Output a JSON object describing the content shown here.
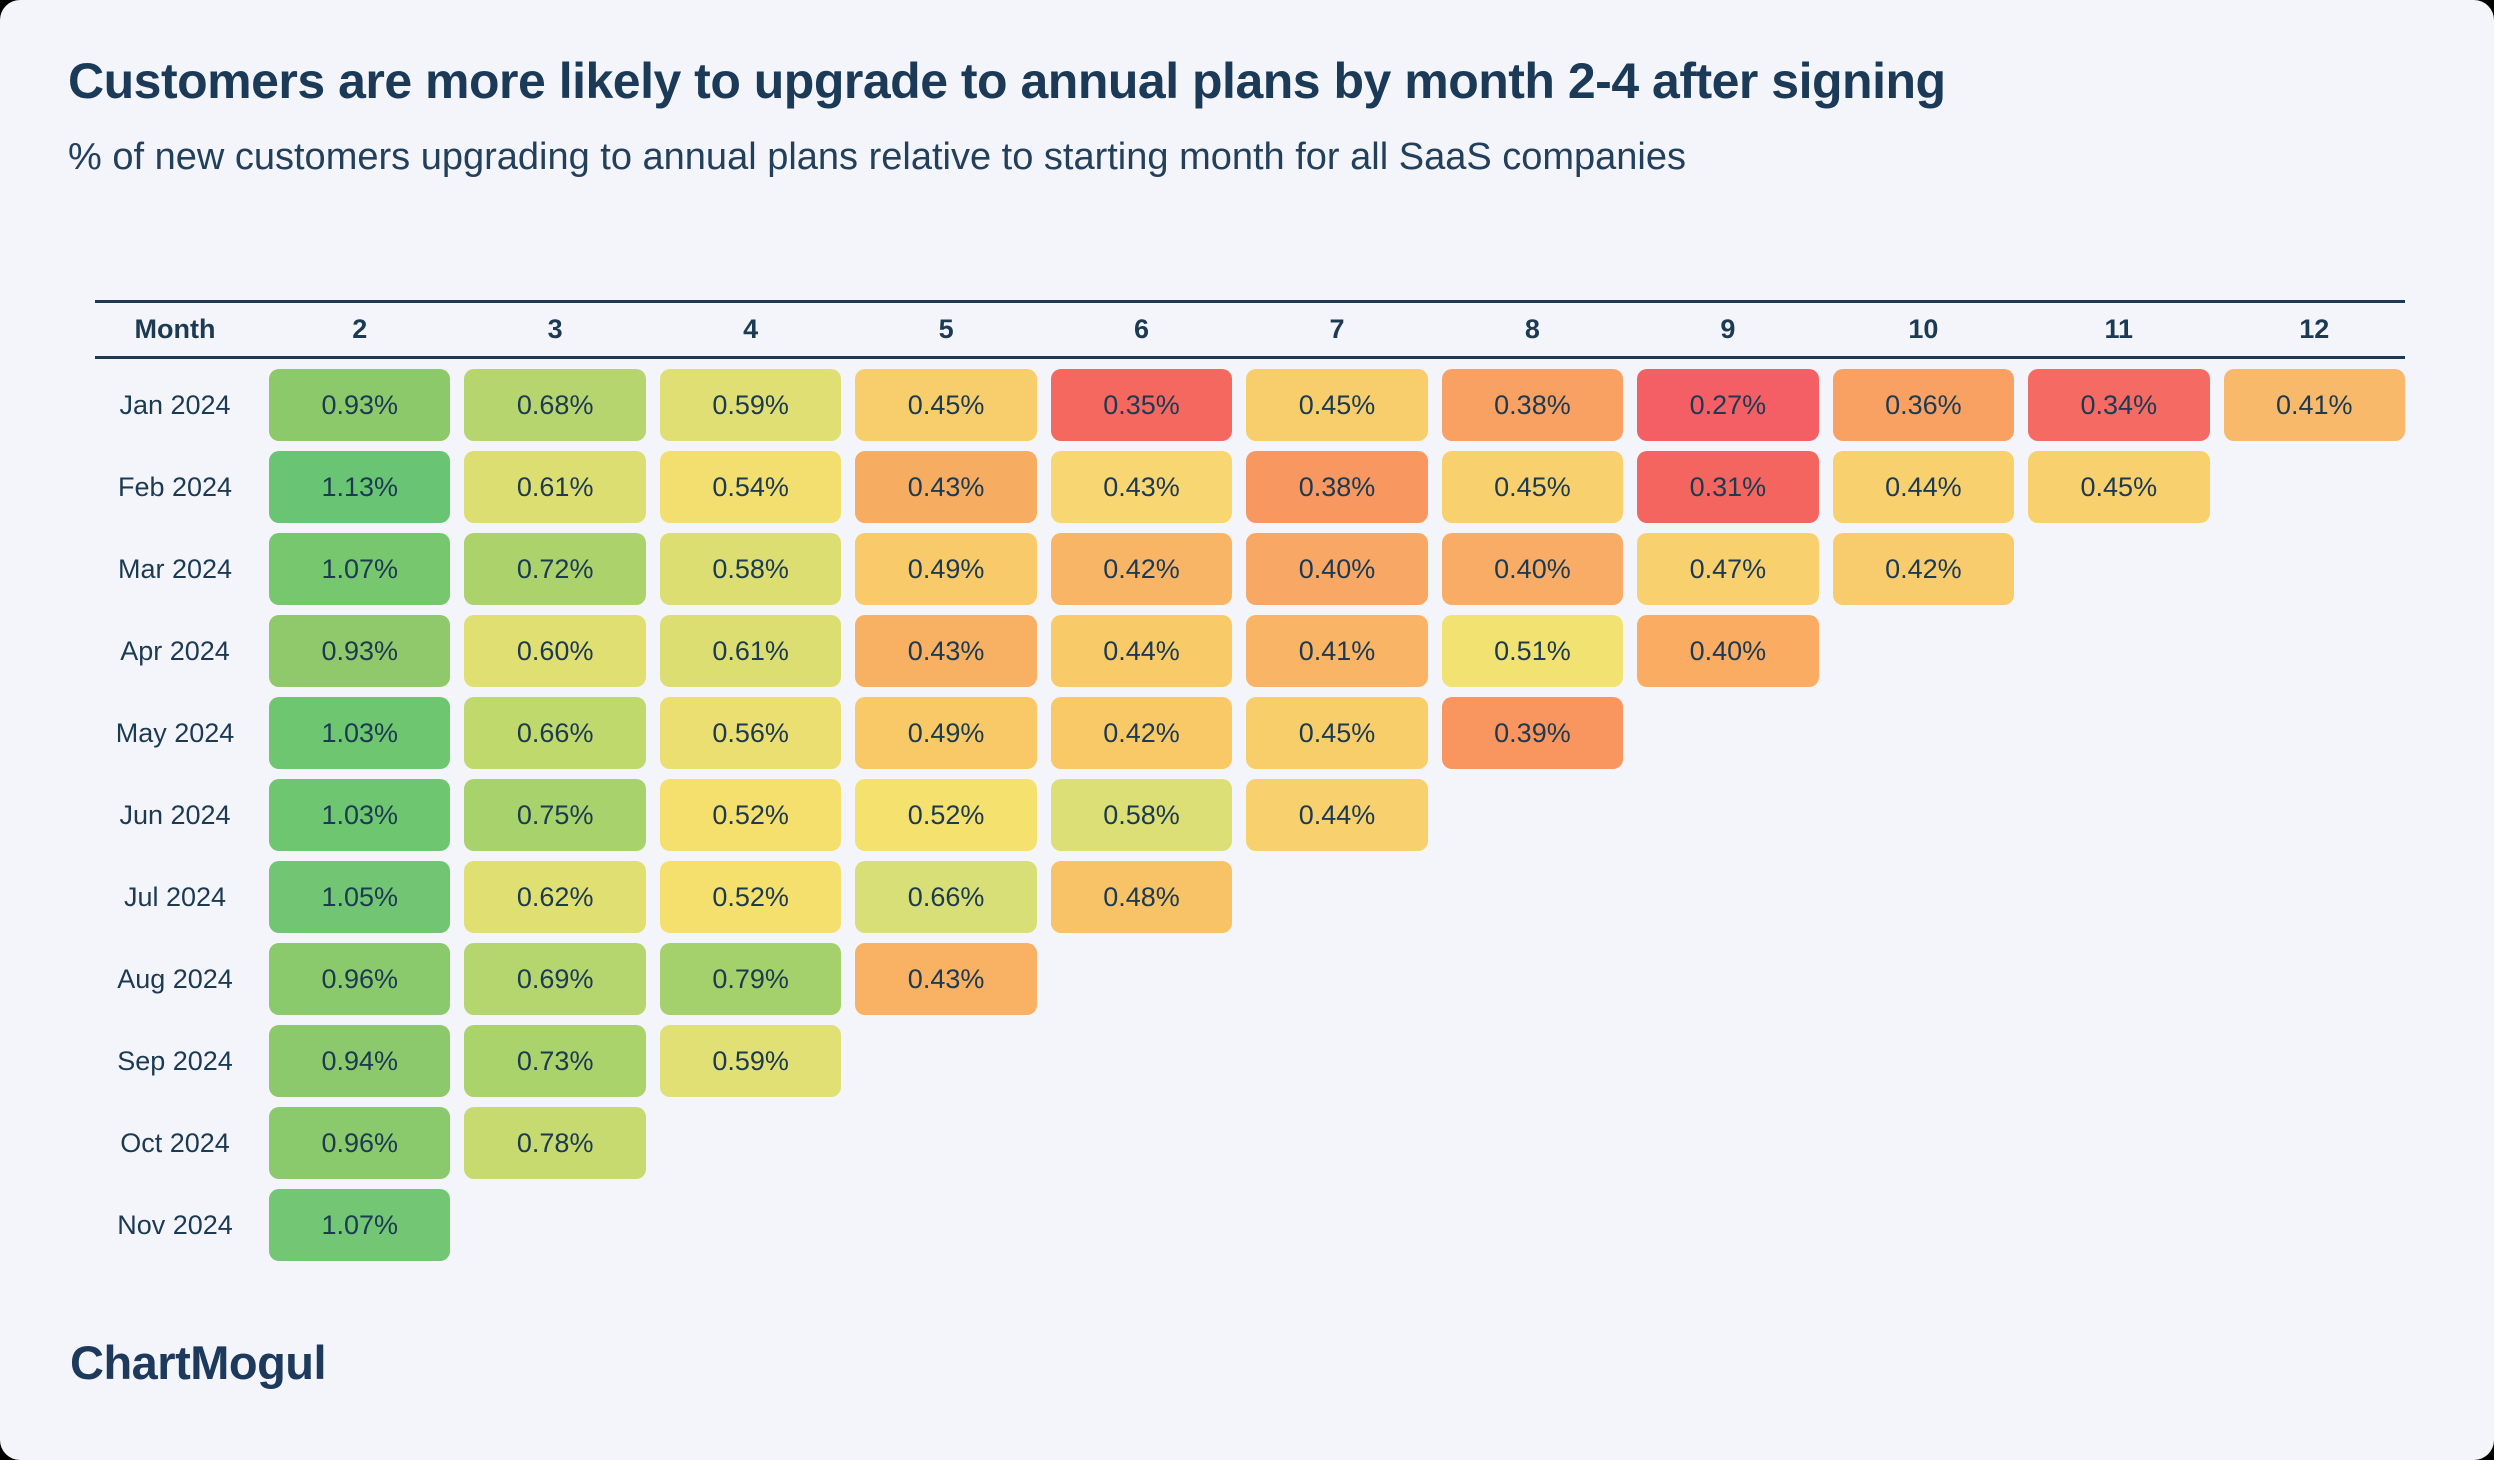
{
  "page": {
    "background": "#000000",
    "card_background": "#F4F5FA",
    "text_color": "#1C3A52"
  },
  "header": {
    "title": "Customers are more likely to upgrade to annual plans by month 2-4 after signing",
    "subtitle": "% of new customers upgrading to annual plans relative to starting month for all SaaS companies"
  },
  "table": {
    "corner_label": "Month",
    "column_headers": [
      "2",
      "3",
      "4",
      "5",
      "6",
      "7",
      "8",
      "9",
      "10",
      "11",
      "12"
    ],
    "rows": [
      {
        "label": "Jan 2024",
        "cells": [
          {
            "v": "0.93%",
            "c": "#8CC96B"
          },
          {
            "v": "0.68%",
            "c": "#B7D56E"
          },
          {
            "v": "0.59%",
            "c": "#DFDF74"
          },
          {
            "v": "0.45%",
            "c": "#F8CE6C"
          },
          {
            "v": "0.35%",
            "c": "#F4685F"
          },
          {
            "v": "0.45%",
            "c": "#F8CE6C"
          },
          {
            "v": "0.38%",
            "c": "#F9A163"
          },
          {
            "v": "0.27%",
            "c": "#F45F66"
          },
          {
            "v": "0.36%",
            "c": "#F9A163"
          },
          {
            "v": "0.34%",
            "c": "#F56B63"
          },
          {
            "v": "0.41%",
            "c": "#F9B96B"
          }
        ]
      },
      {
        "label": "Feb 2024",
        "cells": [
          {
            "v": "1.13%",
            "c": "#69C573"
          },
          {
            "v": "0.61%",
            "c": "#DDDE72"
          },
          {
            "v": "0.54%",
            "c": "#F3DF70"
          },
          {
            "v": "0.43%",
            "c": "#F7AD61"
          },
          {
            "v": "0.43%",
            "c": "#F8D672"
          },
          {
            "v": "0.38%",
            "c": "#F99761"
          },
          {
            "v": "0.45%",
            "c": "#F8D06E"
          },
          {
            "v": "0.31%",
            "c": "#F5655F"
          },
          {
            "v": "0.44%",
            "c": "#F8D06E"
          },
          {
            "v": "0.45%",
            "c": "#F8D06E"
          }
        ]
      },
      {
        "label": "Mar 2024",
        "cells": [
          {
            "v": "1.07%",
            "c": "#77C76E"
          },
          {
            "v": "0.72%",
            "c": "#ABD26B"
          },
          {
            "v": "0.58%",
            "c": "#DCDE72"
          },
          {
            "v": "0.49%",
            "c": "#F8CA69"
          },
          {
            "v": "0.42%",
            "c": "#F9B566"
          },
          {
            "v": "0.40%",
            "c": "#F9A765"
          },
          {
            "v": "0.40%",
            "c": "#F9AC66"
          },
          {
            "v": "0.47%",
            "c": "#F8D06E"
          },
          {
            "v": "0.42%",
            "c": "#F8CC6C"
          }
        ]
      },
      {
        "label": "Apr 2024",
        "cells": [
          {
            "v": "0.93%",
            "c": "#8FC96B"
          },
          {
            "v": "0.60%",
            "c": "#E0DF72"
          },
          {
            "v": "0.61%",
            "c": "#DCDE72"
          },
          {
            "v": "0.43%",
            "c": "#F8B063"
          },
          {
            "v": "0.44%",
            "c": "#F8CB68"
          },
          {
            "v": "0.41%",
            "c": "#F9B465"
          },
          {
            "v": "0.51%",
            "c": "#F2E272"
          },
          {
            "v": "0.40%",
            "c": "#F9AC62"
          }
        ]
      },
      {
        "label": "May 2024",
        "cells": [
          {
            "v": "1.03%",
            "c": "#6FC671"
          },
          {
            "v": "0.66%",
            "c": "#BFD96D"
          },
          {
            "v": "0.56%",
            "c": "#EBDF71"
          },
          {
            "v": "0.49%",
            "c": "#F8C966"
          },
          {
            "v": "0.42%",
            "c": "#F8C966"
          },
          {
            "v": "0.45%",
            "c": "#F8CE6B"
          },
          {
            "v": "0.39%",
            "c": "#F99660"
          }
        ]
      },
      {
        "label": "Jun 2024",
        "cells": [
          {
            "v": "1.03%",
            "c": "#6FC671"
          },
          {
            "v": "0.75%",
            "c": "#A8D26C"
          },
          {
            "v": "0.52%",
            "c": "#F5DF6D"
          },
          {
            "v": "0.52%",
            "c": "#F4E16E"
          },
          {
            "v": "0.58%",
            "c": "#DCDF75"
          },
          {
            "v": "0.44%",
            "c": "#F8D06E"
          }
        ]
      },
      {
        "label": "Jul 2024",
        "cells": [
          {
            "v": "1.05%",
            "c": "#72C673"
          },
          {
            "v": "0.62%",
            "c": "#E0DF72"
          },
          {
            "v": "0.52%",
            "c": "#F5E06E"
          },
          {
            "v": "0.66%",
            "c": "#D8DF76"
          },
          {
            "v": "0.48%",
            "c": "#F8C266"
          }
        ]
      },
      {
        "label": "Aug 2024",
        "cells": [
          {
            "v": "0.96%",
            "c": "#8BC96D"
          },
          {
            "v": "0.69%",
            "c": "#B5D56E"
          },
          {
            "v": "0.79%",
            "c": "#A4D16C"
          },
          {
            "v": "0.43%",
            "c": "#F9B164"
          }
        ]
      },
      {
        "label": "Sep 2024",
        "cells": [
          {
            "v": "0.94%",
            "c": "#8CC96D"
          },
          {
            "v": "0.73%",
            "c": "#ABD36C"
          },
          {
            "v": "0.59%",
            "c": "#E0E074"
          }
        ]
      },
      {
        "label": "Oct 2024",
        "cells": [
          {
            "v": "0.96%",
            "c": "#8BC96D"
          },
          {
            "v": "0.78%",
            "c": "#C6DA6F"
          }
        ]
      },
      {
        "label": "Nov 2024",
        "cells": [
          {
            "v": "1.07%",
            "c": "#72C674"
          }
        ]
      }
    ]
  },
  "footer": {
    "logo_text": "ChartMogul"
  },
  "chart_data": {
    "type": "heatmap",
    "title": "Customers are more likely to upgrade to annual plans by month 2-4 after signing",
    "subtitle": "% of new customers upgrading to annual plans relative to starting month for all SaaS companies",
    "xlabel": "Month",
    "units": "%",
    "x_categories": [
      2,
      3,
      4,
      5,
      6,
      7,
      8,
      9,
      10,
      11,
      12
    ],
    "y_categories": [
      "Jan 2024",
      "Feb 2024",
      "Mar 2024",
      "Apr 2024",
      "May 2024",
      "Jun 2024",
      "Jul 2024",
      "Aug 2024",
      "Sep 2024",
      "Oct 2024",
      "Nov 2024"
    ],
    "values": [
      [
        0.93,
        0.68,
        0.59,
        0.45,
        0.35,
        0.45,
        0.38,
        0.27,
        0.36,
        0.34,
        0.41
      ],
      [
        1.13,
        0.61,
        0.54,
        0.43,
        0.43,
        0.38,
        0.45,
        0.31,
        0.44,
        0.45,
        null
      ],
      [
        1.07,
        0.72,
        0.58,
        0.49,
        0.42,
        0.4,
        0.4,
        0.47,
        0.42,
        null,
        null
      ],
      [
        0.93,
        0.6,
        0.61,
        0.43,
        0.44,
        0.41,
        0.51,
        0.4,
        null,
        null,
        null
      ],
      [
        1.03,
        0.66,
        0.56,
        0.49,
        0.42,
        0.45,
        0.39,
        null,
        null,
        null,
        null
      ],
      [
        1.03,
        0.75,
        0.52,
        0.52,
        0.58,
        0.44,
        null,
        null,
        null,
        null,
        null
      ],
      [
        1.05,
        0.62,
        0.52,
        0.66,
        0.48,
        null,
        null,
        null,
        null,
        null,
        null
      ],
      [
        0.96,
        0.69,
        0.79,
        0.43,
        null,
        null,
        null,
        null,
        null,
        null,
        null
      ],
      [
        0.94,
        0.73,
        0.59,
        null,
        null,
        null,
        null,
        null,
        null,
        null,
        null
      ],
      [
        0.96,
        0.78,
        null,
        null,
        null,
        null,
        null,
        null,
        null,
        null,
        null
      ],
      [
        1.07,
        null,
        null,
        null,
        null,
        null,
        null,
        null,
        null,
        null,
        null
      ]
    ],
    "color_scale": {
      "low": "#F45F66",
      "mid": "#F5DF6D",
      "high": "#69C573",
      "note": "red = low %, yellow = mid, green = high %"
    },
    "legend": "none",
    "grid": false
  }
}
